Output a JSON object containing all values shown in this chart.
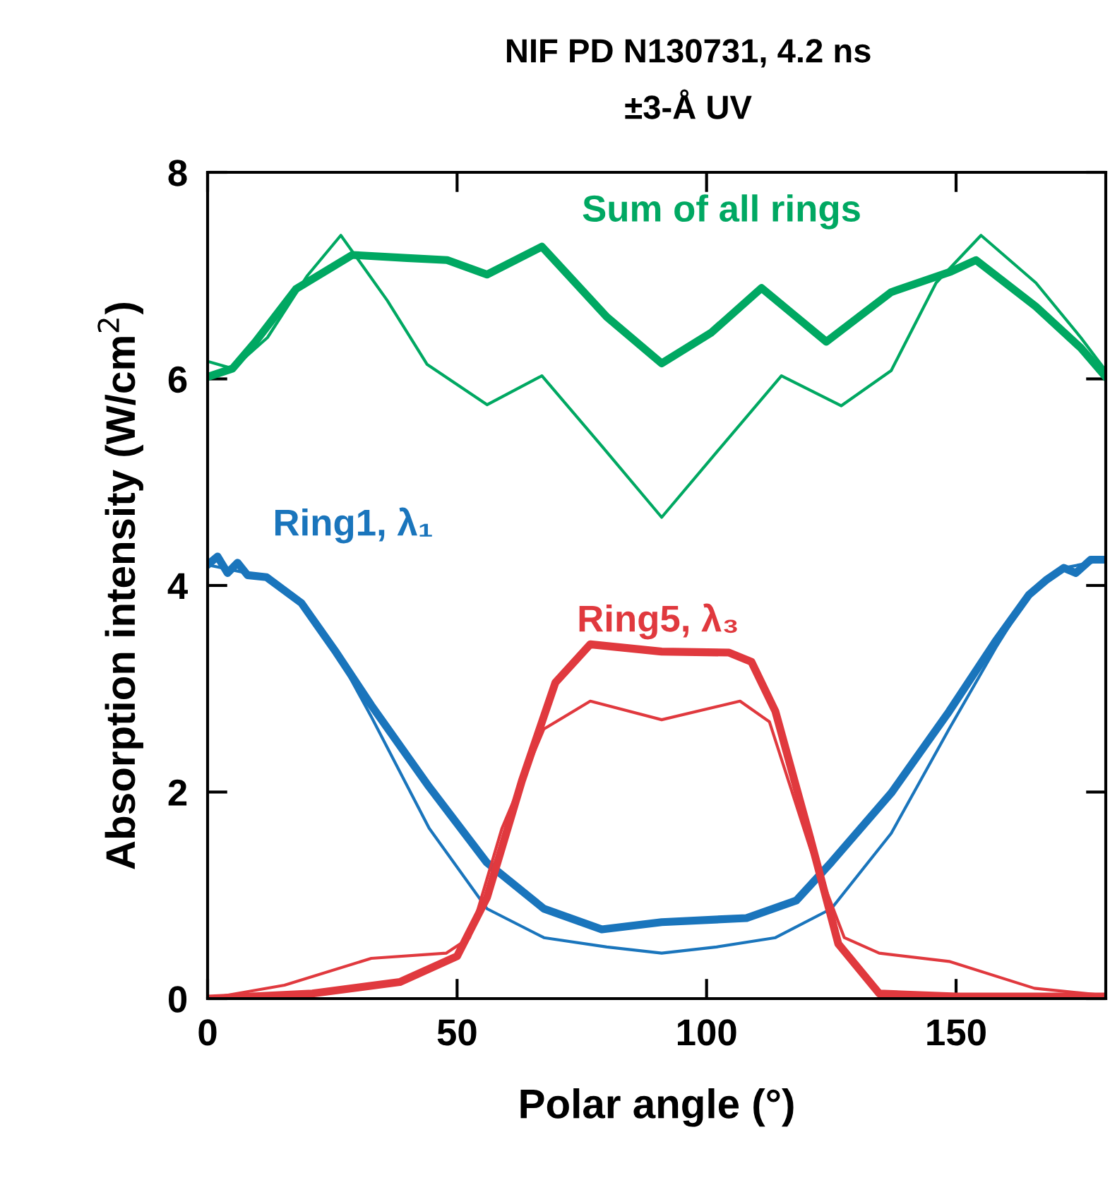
{
  "chart_data": {
    "type": "line",
    "title": "NIF PD N130731, 4.2 ns",
    "subtitle": "±3-Å UV",
    "xlabel": "Polar angle (°)",
    "ylabel": "Absorption intensity (W/cm$^{2}$)",
    "xlim": [
      0,
      180
    ],
    "ylim": [
      0,
      8
    ],
    "xticks": [
      0,
      50,
      100,
      150
    ],
    "yticks": [
      0,
      2,
      4,
      6,
      8
    ],
    "grid": false,
    "legend": false,
    "marker": "none",
    "series": [
      {
        "color": "#00a862",
        "x": [
          0,
          5,
          9.6,
          17.7,
          29,
          40,
          48,
          56,
          67,
          80,
          91,
          101,
          111,
          118,
          124,
          137,
          149,
          154,
          166,
          175,
          180
        ],
        "values": [
          6.02,
          6.1,
          6.36,
          6.87,
          7.2,
          7.17,
          7.15,
          7.01,
          7.28,
          6.6,
          6.15,
          6.45,
          6.88,
          6.6,
          6.36,
          6.84,
          7.04,
          7.15,
          6.7,
          6.3,
          6.02
        ]
      },
      {
        "color": "#00a862",
        "x": [
          0,
          5,
          12,
          20,
          26.7,
          36,
          44,
          56,
          67,
          79,
          91,
          102,
          115,
          127,
          137,
          146,
          155,
          166,
          175,
          180
        ],
        "values": [
          6.17,
          6.1,
          6.4,
          7.0,
          7.39,
          6.76,
          6.14,
          5.75,
          6.03,
          5.35,
          4.66,
          5.29,
          6.03,
          5.74,
          6.08,
          6.93,
          7.39,
          6.93,
          6.4,
          6.08
        ]
      },
      {
        "color": "#1a75bc",
        "x": [
          0,
          2,
          4,
          6,
          8,
          11.8,
          18.8,
          25.8,
          32.8,
          44.4,
          55.9,
          67.4,
          79,
          91,
          108,
          118,
          125,
          137,
          148.6,
          157.9,
          164.6,
          168,
          171.6,
          174,
          177,
          180
        ],
        "values": [
          4.2,
          4.28,
          4.12,
          4.22,
          4.1,
          4.08,
          3.83,
          3.35,
          2.84,
          2.05,
          1.32,
          0.87,
          0.67,
          0.74,
          0.78,
          0.95,
          1.32,
          1.99,
          2.78,
          3.46,
          3.91,
          4.05,
          4.17,
          4.12,
          4.25,
          4.25
        ]
      },
      {
        "color": "#1a75bc",
        "x": [
          0,
          11.8,
          18.8,
          25.8,
          32.8,
          44.4,
          56,
          67.4,
          80,
          91,
          102,
          113.8,
          125,
          137,
          148.6,
          158,
          164.6,
          171.6,
          180
        ],
        "values": [
          4.2,
          4.08,
          3.83,
          3.35,
          2.73,
          1.65,
          0.87,
          0.59,
          0.5,
          0.44,
          0.5,
          0.59,
          0.87,
          1.6,
          2.61,
          3.4,
          3.91,
          4.17,
          4.25
        ]
      },
      {
        "color": "#e0393e",
        "x": [
          0,
          21,
          38.5,
          50,
          56,
          63,
          69.7,
          76.7,
          91,
          104.5,
          109,
          113.8,
          120.8,
          126.4,
          134.6,
          150,
          180
        ],
        "values": [
          0,
          0.05,
          0.16,
          0.41,
          0.98,
          2.11,
          3.06,
          3.43,
          3.36,
          3.35,
          3.26,
          2.78,
          1.55,
          0.53,
          0.05,
          0.02,
          0.02
        ]
      },
      {
        "color": "#e0393e",
        "x": [
          0,
          15.4,
          32.8,
          47.8,
          52.5,
          59,
          67.4,
          76.7,
          91,
          106.7,
          112.6,
          120.8,
          127.6,
          134.6,
          148.6,
          165.7,
          180
        ],
        "values": [
          0,
          0.13,
          0.39,
          0.44,
          0.59,
          1.65,
          2.61,
          2.88,
          2.7,
          2.88,
          2.68,
          1.45,
          0.59,
          0.44,
          0.36,
          0.1,
          0.03
        ]
      }
    ],
    "annotations": [
      "Sum of all rings",
      "Ring1, λ₁",
      "Ring5, λ₃"
    ]
  }
}
